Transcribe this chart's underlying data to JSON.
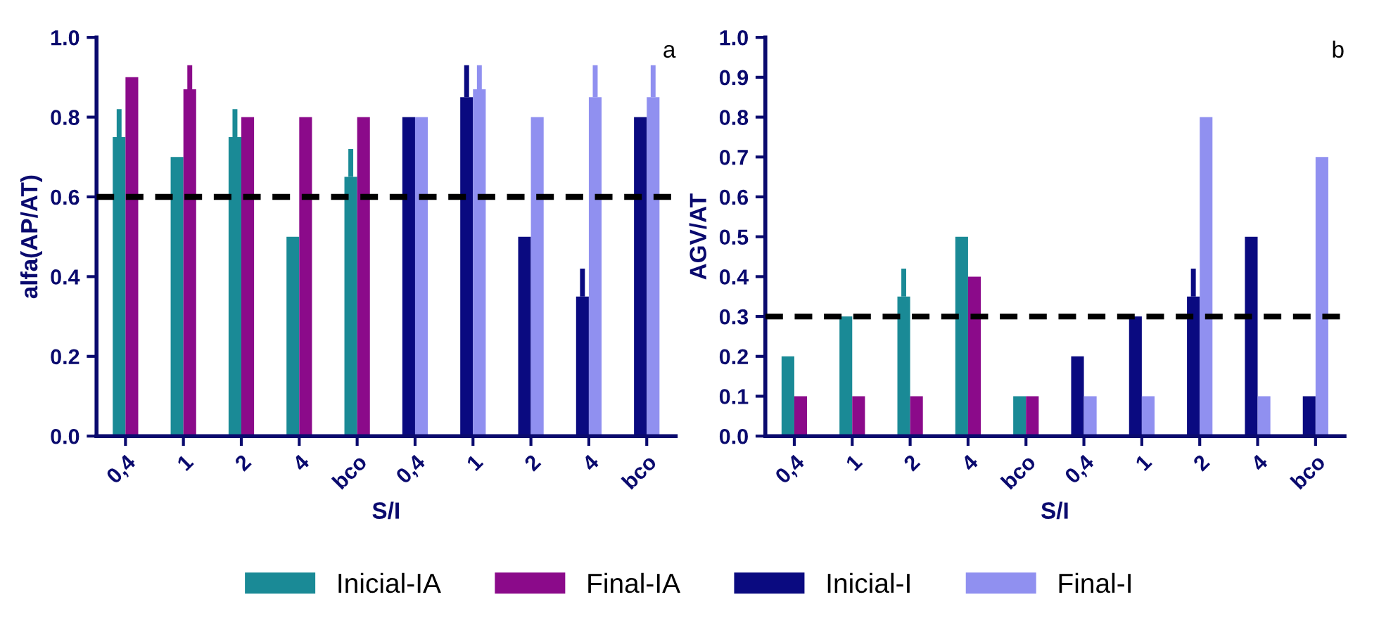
{
  "chart_data": [
    {
      "type": "bar",
      "title": "a",
      "xlabel": "S/I",
      "ylabel": "alfa(AP/AT)",
      "categories": [
        "0,4",
        "1",
        "2",
        "4",
        "bco",
        "0,4",
        "1",
        "2",
        "4",
        "bco"
      ],
      "series": [
        {
          "name": "Inicial-IA",
          "color": "#1a8a96",
          "values": [
            0.75,
            0.7,
            0.75,
            0.5,
            0.65,
            null,
            null,
            null,
            null,
            null
          ],
          "errors": [
            [
              0.75,
              0.82
            ],
            null,
            [
              0.75,
              0.82
            ],
            null,
            [
              0.65,
              0.72
            ],
            null,
            null,
            null,
            null,
            null
          ]
        },
        {
          "name": "Final-IA",
          "color": "#8b0a8a",
          "values": [
            0.9,
            0.87,
            0.8,
            0.8,
            0.8,
            null,
            null,
            null,
            null,
            null
          ],
          "errors": [
            null,
            [
              0.87,
              0.93
            ],
            null,
            null,
            null,
            null,
            null,
            null,
            null,
            null
          ]
        },
        {
          "name": "Inicial-I",
          "color": "#0a0a80",
          "values": [
            null,
            null,
            null,
            null,
            null,
            0.8,
            0.85,
            0.5,
            0.35,
            0.8
          ],
          "errors": [
            null,
            null,
            null,
            null,
            null,
            null,
            [
              0.85,
              0.93
            ],
            null,
            [
              0.35,
              0.42
            ],
            null
          ]
        },
        {
          "name": "Final-I",
          "color": "#9090f0",
          "values": [
            null,
            null,
            null,
            null,
            null,
            0.8,
            0.87,
            0.8,
            0.85,
            0.85
          ],
          "errors": [
            null,
            null,
            null,
            null,
            null,
            null,
            [
              0.87,
              0.93
            ],
            null,
            [
              0.85,
              0.93
            ],
            [
              0.85,
              0.93
            ]
          ]
        }
      ],
      "ylim": [
        0,
        1
      ],
      "yticks": [
        {
          "value": 0,
          "label": "0.0"
        },
        {
          "value": 0.2,
          "label": "0.2"
        },
        {
          "value": 0.4,
          "label": "0.4"
        },
        {
          "value": 0.6,
          "label": "0.6"
        },
        {
          "value": 0.8,
          "label": "0.8"
        },
        {
          "value": 1,
          "label": "1.0"
        }
      ],
      "ref_lines": [
        {
          "axis": "y",
          "value": 0.6,
          "color": "#000000",
          "line_style": "dashed"
        }
      ],
      "grid": false,
      "legend": "bottom"
    },
    {
      "type": "bar",
      "title": "b",
      "xlabel": "S/I",
      "ylabel": "AGV/AT",
      "categories": [
        "0,4",
        "1",
        "2",
        "4",
        "bco",
        "0,4",
        "1",
        "2",
        "4",
        "bco"
      ],
      "series": [
        {
          "name": "Inicial-IA",
          "color": "#1a8a96",
          "values": [
            0.2,
            0.3,
            0.35,
            0.5,
            0.1,
            null,
            null,
            null,
            null,
            null
          ],
          "errors": [
            null,
            null,
            [
              0.35,
              0.42
            ],
            null,
            null,
            null,
            null,
            null,
            null,
            null
          ]
        },
        {
          "name": "Final-IA",
          "color": "#8b0a8a",
          "values": [
            0.1,
            0.1,
            0.1,
            0.4,
            0.1,
            null,
            null,
            null,
            null,
            null
          ]
        },
        {
          "name": "Inicial-I",
          "color": "#0a0a80",
          "values": [
            null,
            null,
            null,
            null,
            null,
            0.2,
            0.3,
            0.35,
            0.5,
            0.1
          ],
          "errors": [
            null,
            null,
            null,
            null,
            null,
            null,
            null,
            [
              0.35,
              0.42
            ],
            null,
            null
          ]
        },
        {
          "name": "Final-I",
          "color": "#9090f0",
          "values": [
            null,
            null,
            null,
            null,
            null,
            0.1,
            0.1,
            0.8,
            0.1,
            0.7
          ]
        }
      ],
      "ylim": [
        0,
        1
      ],
      "yticks": [
        {
          "value": 0,
          "label": "0.0"
        },
        {
          "value": 0.1,
          "label": "0.1"
        },
        {
          "value": 0.2,
          "label": "0.2"
        },
        {
          "value": 0.3,
          "label": "0.3"
        },
        {
          "value": 0.4,
          "label": "0.4"
        },
        {
          "value": 0.5,
          "label": "0.5"
        },
        {
          "value": 0.6,
          "label": "0.6"
        },
        {
          "value": 0.7,
          "label": "0.7"
        },
        {
          "value": 0.8,
          "label": "0.8"
        },
        {
          "value": 0.9,
          "label": "0.9"
        },
        {
          "value": 1,
          "label": "1.0"
        }
      ],
      "ref_lines": [
        {
          "axis": "y",
          "value": 0.3,
          "color": "#000000",
          "line_style": "dashed"
        }
      ],
      "grid": false,
      "legend": "bottom"
    }
  ]
}
